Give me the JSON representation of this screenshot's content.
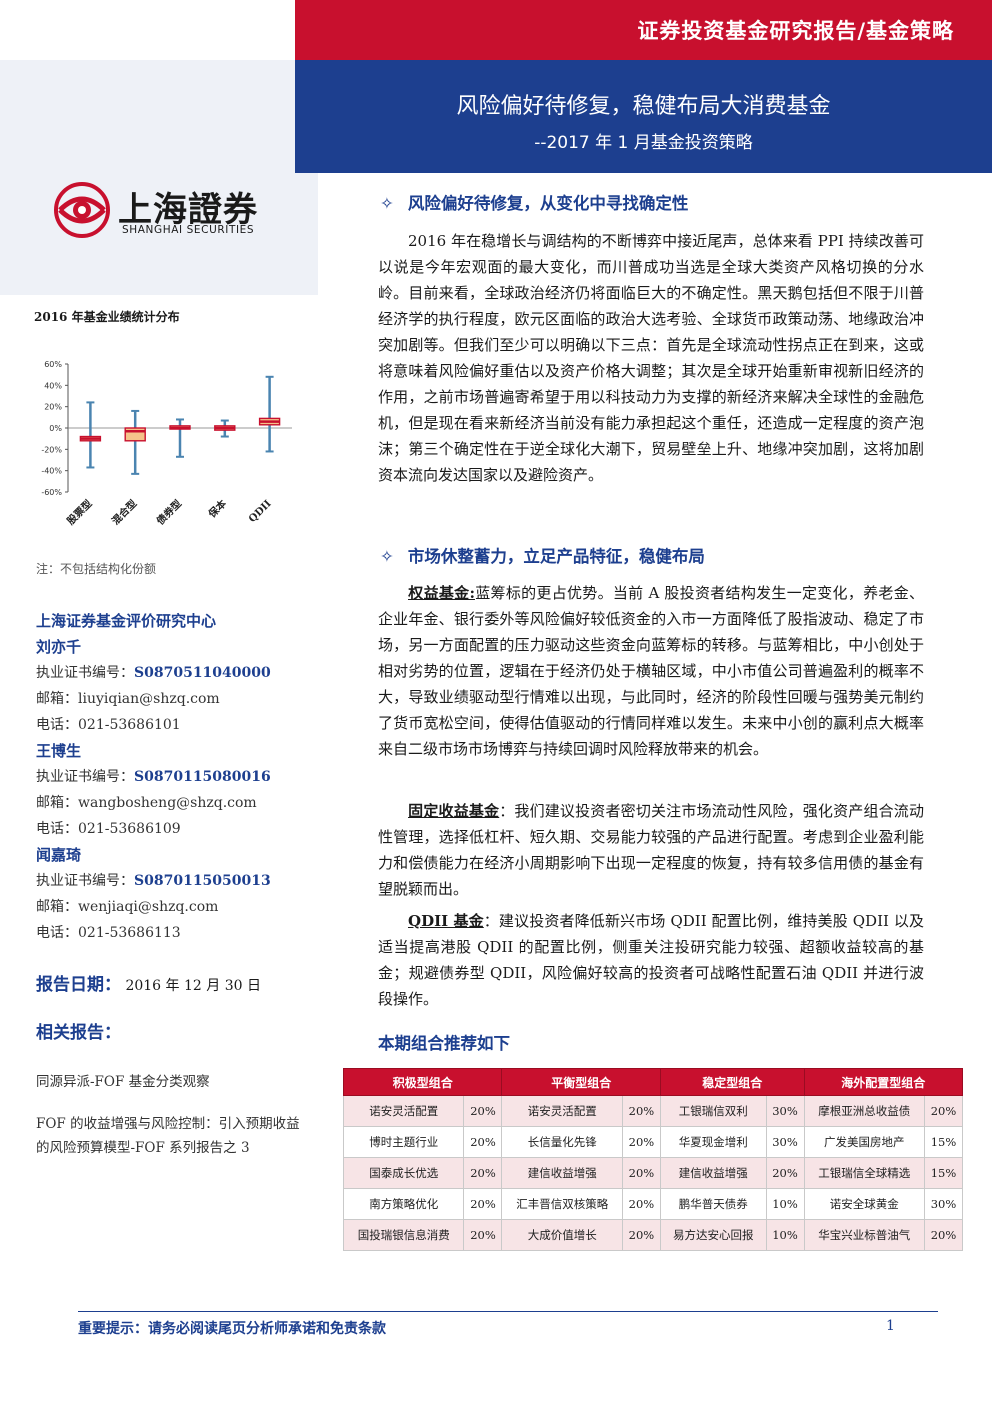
{
  "header": {
    "category": "证券投资基金研究报告/基金策略",
    "title": "风险偏好待修复，稳健布局大消费基金",
    "subtitle": "--2017 年 1 月基金投资策略"
  },
  "logo": {
    "name_cn": "上海證券",
    "name_en": "SHANGHAI SECURITIES"
  },
  "chart_data": {
    "type": "box",
    "title": "2016 年基金业绩统计分布",
    "categories": [
      "股票型",
      "混合型",
      "债券型",
      "保本",
      "QDII"
    ],
    "y_ticks": [
      "60%",
      "40%",
      "20%",
      "0%",
      "-20%",
      "-40%",
      "-60%"
    ],
    "ylim": [
      -60,
      60
    ],
    "series": [
      {
        "category": "股票型",
        "max": 24,
        "q3": -8,
        "median": -10,
        "q1": -12,
        "min": -37
      },
      {
        "category": "混合型",
        "max": 16,
        "q3": 0,
        "median": -3,
        "q1": -12,
        "min": -43
      },
      {
        "category": "债券型",
        "max": 8,
        "q3": 2,
        "median": 0,
        "q1": -1,
        "min": -27
      },
      {
        "category": "保本",
        "max": 7,
        "q3": 2,
        "median": 0,
        "q1": -2,
        "min": -8
      },
      {
        "category": "QDII",
        "max": 48,
        "q3": 9,
        "median": 6,
        "q1": 3,
        "min": -22
      }
    ],
    "colors": {
      "whisker": "#4a84b0",
      "box": "#c8102e",
      "fill": "#f5c28a"
    }
  },
  "chart_note": "注：不包括结构化份额",
  "contact": {
    "org": "上海证券基金评价研究中心",
    "analysts": [
      {
        "name": "刘亦千",
        "cert_label": "执业证书编号：",
        "cert": "S0870511040000",
        "email_label": "邮箱：",
        "email": "liuyiqian@shzq.com",
        "phone_label": "电话：",
        "phone": "021-53686101"
      },
      {
        "name": "王博生",
        "cert_label": "执业证书编号：",
        "cert": "S0870115080016",
        "email_label": "邮箱：",
        "email": "wangbosheng@shzq.com",
        "phone_label": "电话：",
        "phone": "021-53686109"
      },
      {
        "name": "闻嘉琦",
        "cert_label": "执业证书编号：",
        "cert": "S0870115050013",
        "email_label": "邮箱：",
        "email": "wenjiaqi@shzq.com",
        "phone_label": "电话：",
        "phone": "021-53686113"
      }
    ]
  },
  "report_date": {
    "label": "报告日期：",
    "value": "2016 年 12 月 30 日"
  },
  "related": {
    "title": "相关报告：",
    "items": [
      "同源异派-FOF 基金分类观察",
      "FOF 的收益增强与风险控制：引入预期收益的风险预算模型-FOF 系列报告之 3"
    ]
  },
  "sections": [
    {
      "heading": "风险偏好待修复，从变化中寻找确定性",
      "body": "2016 年在稳增长与调结构的不断博弈中接近尾声，总体来看 PPI 持续改善可以说是今年宏观面的最大变化，而川普成功当选是全球大类资产风格切换的分水岭。目前来看，全球政治经济仍将面临巨大的不确定性。黑天鹅包括但不限于川普经济学的执行程度，欧元区面临的政治大选考验、全球货币政策动荡、地缘政治冲突加剧等。但我们至少可以明确以下三点：首先是全球流动性拐点正在到来，这或将意味着风险偏好重估以及资产价格大调整；其次是全球开始重新审视新旧经济的作用，之前市场普遍寄希望于用以科技动力为支撑的新经济来解决全球性的金融危机，但是现在看来新经济当前没有能力承担起这个重任，还造成一定程度的资产泡沫；第三个确定性在于逆全球化大潮下，贸易壁垒上升、地缘冲突加剧，这将加剧资本流向发达国家以及避险资产。"
    },
    {
      "heading": "市场休整蓄力，立足产品特征，稳健布局",
      "paragraphs": [
        {
          "keyword": "权益基金:",
          "body": "蓝筹标的更占优势。当前 A 股投资者结构发生一定变化，养老金、企业年金、银行委外等风险偏好较低资金的入市一方面降低了股指波动、稳定了市场，另一方面配置的压力驱动这些资金向蓝筹标的转移。与蓝筹相比，中小创处于相对劣势的位置，逻辑在于经济仍处于横轴区域，中小市值公司普遍盈利的概率不大，导致业绩驱动型行情难以出现，与此同时，经济的阶段性回暖与强势美元制约了货币宽松空间，使得估值驱动的行情同样难以发生。未来中小创的赢利点大概率来自二级市场市场博弈与持续回调时风险释放带来的机会。"
        },
        {
          "keyword": "固定收益基金",
          "body": "：我们建议投资者密切关注市场流动性风险，强化资产组合流动性管理，选择低杠杆、短久期、交易能力较强的产品进行配置。考虑到企业盈利能力和偿债能力在经济小周期影响下出现一定程度的恢复，持有较多信用债的基金有望脱颖而出。"
        },
        {
          "keyword": "QDII 基金",
          "body": "：建议投资者降低新兴市场 QDII 配置比例，维持美股 QDII 以及适当提高港股 QDII 的配置比例，侧重关注投研究能力较强、超额收益较高的基金；规避债券型 QDII，风险偏好较高的投资者可战略性配置石油 QDII 并进行波段操作。"
        }
      ]
    }
  ],
  "portfolio": {
    "title": "本期组合推荐如下",
    "headers": [
      "积极型组合",
      "平衡型组合",
      "稳定型组合",
      "海外配置型组合"
    ],
    "rows": [
      [
        [
          "诺安灵活配置",
          "20%"
        ],
        [
          "诺安灵活配置",
          "20%"
        ],
        [
          "工银瑞信双利",
          "30%"
        ],
        [
          "摩根亚洲总收益债",
          "20%"
        ]
      ],
      [
        [
          "博时主题行业",
          "20%"
        ],
        [
          "长信量化先锋",
          "20%"
        ],
        [
          "华夏现金增利",
          "30%"
        ],
        [
          "广发美国房地产",
          "15%"
        ]
      ],
      [
        [
          "国泰成长优选",
          "20%"
        ],
        [
          "建信收益增强",
          "20%"
        ],
        [
          "建信收益增强",
          "20%"
        ],
        [
          "工银瑞信全球精选",
          "15%"
        ]
      ],
      [
        [
          "南方策略优化",
          "20%"
        ],
        [
          "汇丰晋信双核策略",
          "20%"
        ],
        [
          "鹏华普天债券",
          "10%"
        ],
        [
          "诺安全球黄金",
          "30%"
        ]
      ],
      [
        [
          "国投瑞银信息消费",
          "20%"
        ],
        [
          "大成价值增长",
          "20%"
        ],
        [
          "易方达安心回报",
          "10%"
        ],
        [
          "华宝兴业标普油气",
          "20%"
        ]
      ]
    ]
  },
  "footer": {
    "notice": "重要提示：请务必阅读尾页分析师承诺和免责条款",
    "page": "1"
  }
}
